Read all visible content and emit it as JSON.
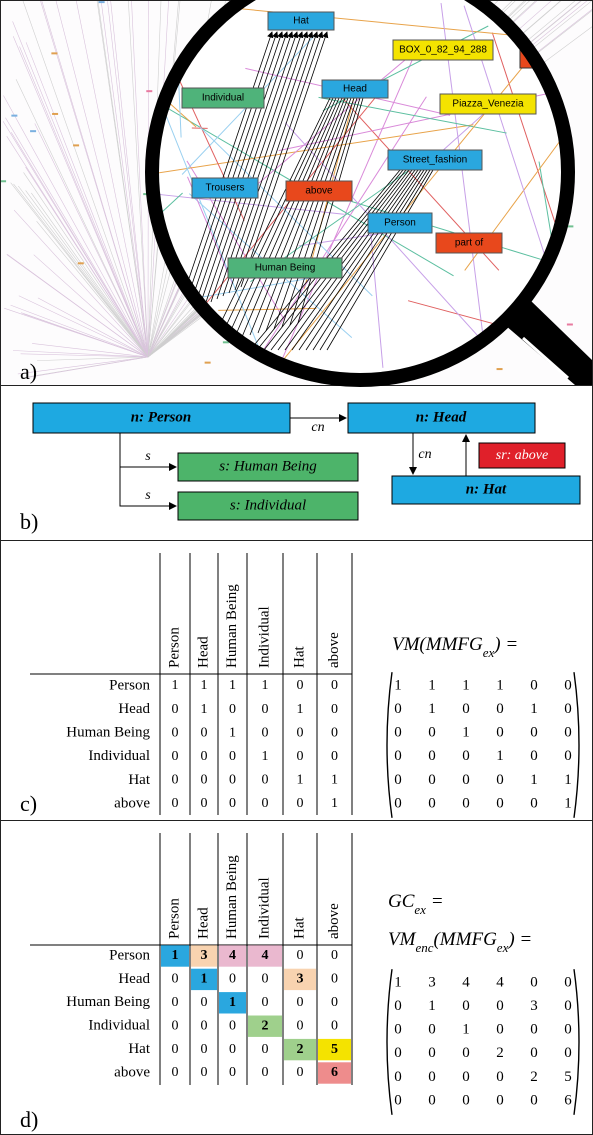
{
  "panel_a": {
    "label": "a)",
    "nodes": [
      {
        "label": "Hat",
        "color": "#2aa7df"
      },
      {
        "label": "BOX_0_82_94_288",
        "color": "#f4e300"
      },
      {
        "label": "Head",
        "color": "#2aa7df"
      },
      {
        "label": "Individual",
        "color": "#4fb37a"
      },
      {
        "label": "Piazza_Venezia",
        "color": "#f4e300"
      },
      {
        "label": "Street_fashion",
        "color": "#2aa7df"
      },
      {
        "label": "Trousers",
        "color": "#2aa7df"
      },
      {
        "label": "above",
        "color": "#e8481c"
      },
      {
        "label": "Person",
        "color": "#2aa7df"
      },
      {
        "label": "part of",
        "color": "#e8481c"
      },
      {
        "label": "Human Being",
        "color": "#4fb37a"
      }
    ]
  },
  "panel_b": {
    "label": "b)",
    "nodes": [
      "n: Person",
      "n: Head",
      "s: Human Being",
      "s: Individual",
      "n: Hat",
      "sr: above"
    ],
    "edges": [
      "cn",
      "s",
      "s",
      "cn"
    ]
  },
  "panel_c": {
    "label": "c)",
    "formula_lines": [
      [
        "VM(MMFG",
        "ex",
        ") ="
      ]
    ],
    "headers": [
      "Person",
      "Head",
      "Human Being",
      "Individual",
      "Hat",
      "above"
    ],
    "rows": [
      {
        "name": "Person",
        "cells": [
          1,
          1,
          1,
          1,
          0,
          0
        ]
      },
      {
        "name": "Head",
        "cells": [
          0,
          1,
          0,
          0,
          1,
          0
        ]
      },
      {
        "name": "Human Being",
        "cells": [
          0,
          0,
          1,
          0,
          0,
          0
        ]
      },
      {
        "name": "Individual",
        "cells": [
          0,
          0,
          0,
          1,
          0,
          0
        ]
      },
      {
        "name": "Hat",
        "cells": [
          0,
          0,
          0,
          0,
          1,
          1
        ]
      },
      {
        "name": "above",
        "cells": [
          0,
          0,
          0,
          0,
          0,
          1
        ]
      }
    ]
  },
  "panel_d": {
    "label": "d)",
    "formula_lines": [
      [
        "GC",
        "ex",
        " ="
      ],
      [
        "VM",
        "enc",
        "(MMFG",
        "ex",
        ") ="
      ]
    ],
    "headers": [
      "Person",
      "Head",
      "Human Being",
      "Individual",
      "Hat",
      "above"
    ],
    "rows": [
      {
        "name": "Person",
        "cells": [
          1,
          3,
          4,
          4,
          0,
          0
        ]
      },
      {
        "name": "Head",
        "cells": [
          0,
          1,
          0,
          0,
          3,
          0
        ]
      },
      {
        "name": "Human Being",
        "cells": [
          0,
          0,
          1,
          0,
          0,
          0
        ]
      },
      {
        "name": "Individual",
        "cells": [
          0,
          0,
          0,
          2,
          0,
          0
        ]
      },
      {
        "name": "Hat",
        "cells": [
          0,
          0,
          0,
          0,
          2,
          5
        ]
      },
      {
        "name": "above",
        "cells": [
          0,
          0,
          0,
          0,
          0,
          6
        ]
      }
    ],
    "value_colors": {
      "1": "#2aa7df",
      "2": "#9fd08c",
      "3": "#f8d3b0",
      "4": "#eab8cf",
      "5": "#f4e300",
      "6": "#ee8c8c"
    }
  }
}
